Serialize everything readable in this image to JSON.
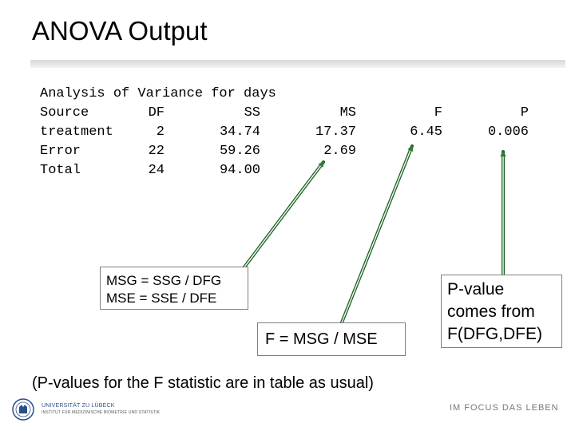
{
  "slide": {
    "title": "ANOVA Output",
    "header_line": "Analysis of Variance for days",
    "columns": [
      "Source",
      "DF",
      "SS",
      "MS",
      "F",
      "P"
    ],
    "rows": [
      {
        "source": "treatment",
        "df": "2",
        "ss": "34.74",
        "ms": "17.37",
        "f": "6.45",
        "p": "0.006"
      },
      {
        "source": "Error",
        "df": "22",
        "ss": "59.26",
        "ms": "2.69",
        "f": "",
        "p": ""
      },
      {
        "source": "Total",
        "df": "24",
        "ss": "94.00",
        "ms": "",
        "f": "",
        "p": ""
      }
    ],
    "callouts": {
      "msg_mse": [
        "MSG = SSG / DFG",
        "MSE = SSE / DFE"
      ],
      "f_formula": "F = MSG / MSE",
      "pvalue": [
        "P-value",
        "comes from",
        "F(DFG,DFE)"
      ]
    },
    "footnote": "(P-values for the F statistic are in table as usual)",
    "footer": {
      "university_lines": [
        "UNIVERSITÄT ZU LÜBECK",
        "INSTITUT FÜR MEDIZINISCHE BIOMETRIE UND STATISTIK"
      ],
      "slogan": "IM FOCUS DAS LEBEN"
    }
  },
  "colors": {
    "arrow": "#2e7d32",
    "box_border": "#7f7f7f",
    "logo": "#2b4f8a"
  }
}
